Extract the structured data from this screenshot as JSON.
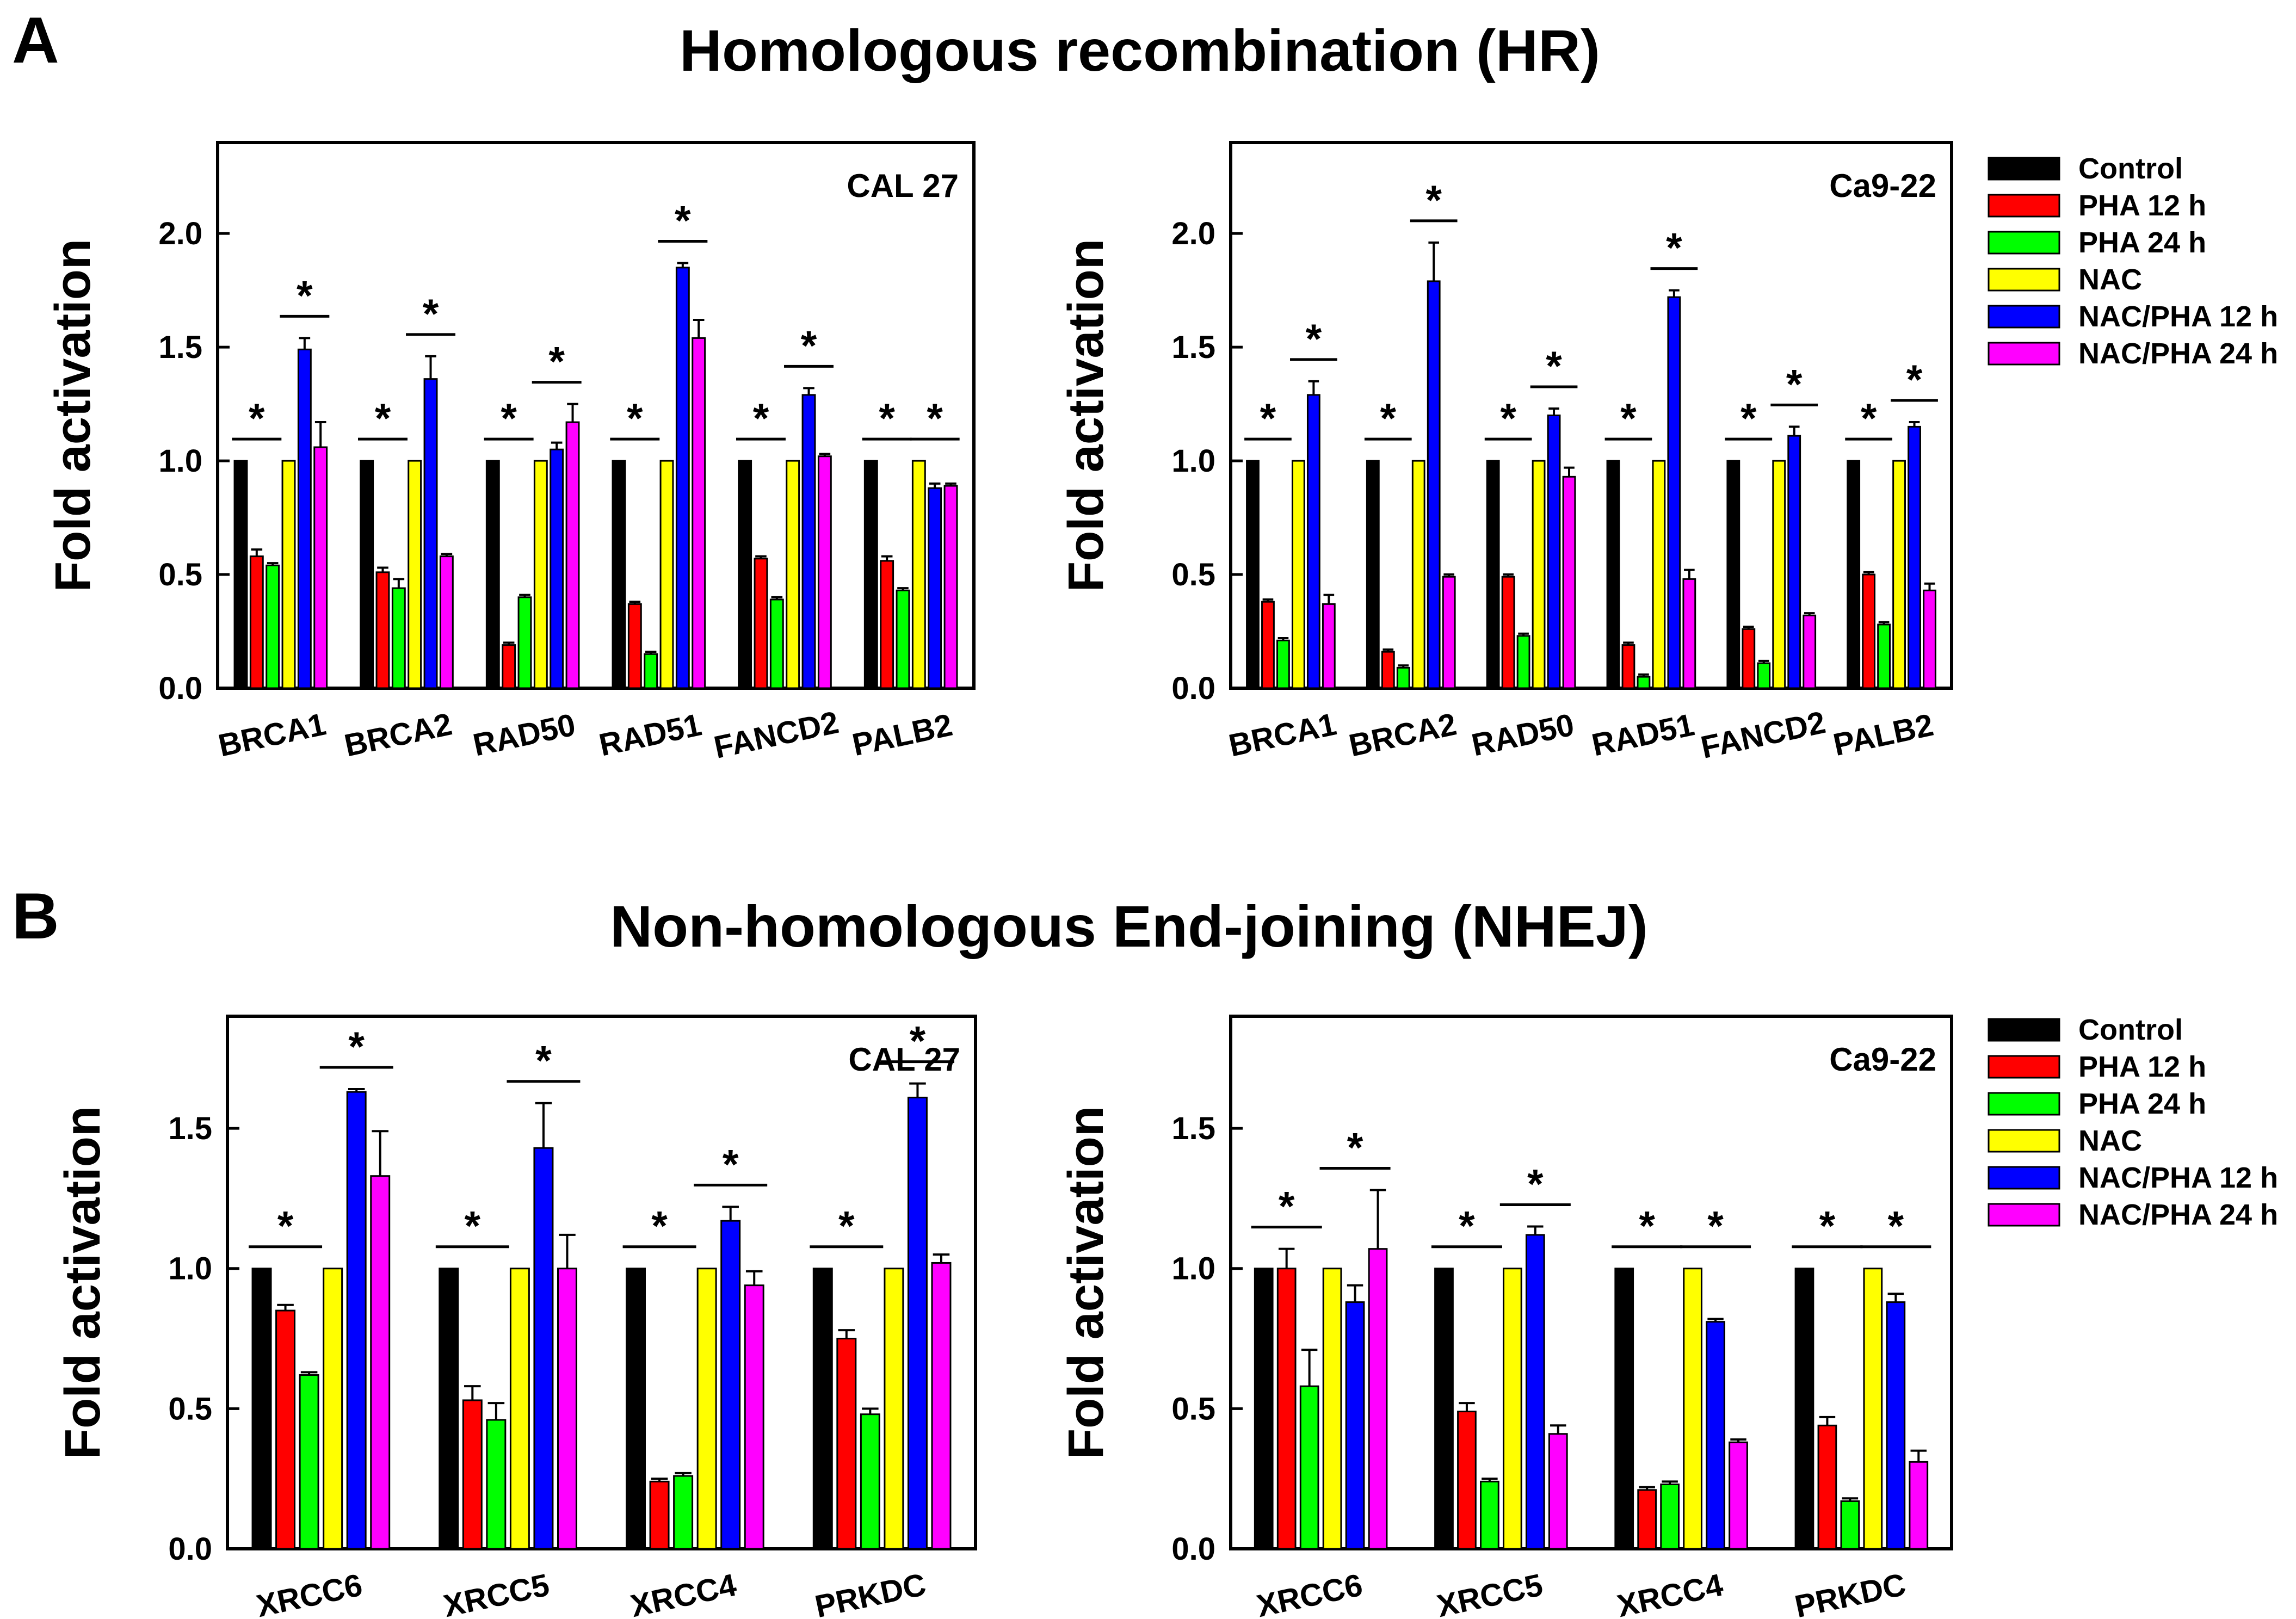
{
  "panels": [
    {
      "letter": "A",
      "title": "Homologous recombination (HR)"
    },
    {
      "letter": "B",
      "title": "Non-homologous End-joining (NHEJ)"
    }
  ],
  "legend": {
    "items": [
      {
        "name": "Control",
        "color": "#000000"
      },
      {
        "name": "PHA 12 h",
        "color": "#ff0000"
      },
      {
        "name": "PHA 24 h",
        "color": "#00ff00"
      },
      {
        "name": "NAC",
        "color": "#ffff00"
      },
      {
        "name": "NAC/PHA 12 h",
        "color": "#0000ff"
      },
      {
        "name": "NAC/PHA 24 h",
        "color": "#ff00ff"
      }
    ]
  },
  "chart_data": [
    {
      "type": "bar",
      "panel": "A",
      "label": "CAL 27",
      "ylabel": "Fold activation",
      "ylim": [
        0,
        2.4
      ],
      "yticks": [
        "0.0",
        "0.5",
        "1.0",
        "1.5",
        "2.0"
      ],
      "categories": [
        "BRCA1",
        "BRCA2",
        "RAD50",
        "RAD51",
        "FANCD2",
        "PALB2"
      ],
      "series": [
        {
          "name": "Control",
          "values": [
            1,
            1,
            1,
            1,
            1,
            1
          ],
          "errors": [
            0,
            0,
            0,
            0,
            0,
            0
          ]
        },
        {
          "name": "PHA 12 h",
          "values": [
            0.58,
            0.51,
            0.19,
            0.37,
            0.57,
            0.56
          ],
          "errors": [
            0.03,
            0.02,
            0.01,
            0.01,
            0.01,
            0.02
          ]
        },
        {
          "name": "PHA 24 h",
          "values": [
            0.54,
            0.44,
            0.4,
            0.15,
            0.39,
            0.43
          ],
          "errors": [
            0.01,
            0.04,
            0.01,
            0.01,
            0.01,
            0.01
          ]
        },
        {
          "name": "NAC",
          "values": [
            1,
            1,
            1,
            1,
            1,
            1
          ],
          "errors": [
            0,
            0,
            0,
            0,
            0,
            0
          ]
        },
        {
          "name": "NAC/PHA 12 h",
          "values": [
            1.49,
            1.36,
            1.05,
            1.85,
            1.29,
            0.88
          ],
          "errors": [
            0.05,
            0.1,
            0.03,
            0.02,
            0.03,
            0.02
          ]
        },
        {
          "name": "NAC/PHA 24 h",
          "values": [
            1.06,
            0.58,
            1.17,
            1.54,
            1.02,
            0.89
          ],
          "errors": [
            0.11,
            0.01,
            0.08,
            0.08,
            0.01,
            0.01
          ]
        }
      ],
      "significance": [
        {
          "category": 0,
          "bars": [
            0,
            2
          ],
          "label": "*"
        },
        {
          "category": 0,
          "bars": [
            3,
            5
          ],
          "label": "*"
        },
        {
          "category": 1,
          "bars": [
            0,
            2
          ],
          "label": "*"
        },
        {
          "category": 1,
          "bars": [
            3,
            5
          ],
          "label": "*"
        },
        {
          "category": 2,
          "bars": [
            0,
            2
          ],
          "label": "*"
        },
        {
          "category": 2,
          "bars": [
            3,
            5
          ],
          "label": "*"
        },
        {
          "category": 3,
          "bars": [
            0,
            2
          ],
          "label": "*"
        },
        {
          "category": 3,
          "bars": [
            3,
            5
          ],
          "label": "*"
        },
        {
          "category": 4,
          "bars": [
            0,
            2
          ],
          "label": "*"
        },
        {
          "category": 4,
          "bars": [
            3,
            5
          ],
          "label": "*"
        },
        {
          "category": 5,
          "bars": [
            0,
            2
          ],
          "label": "*"
        },
        {
          "category": 5,
          "bars": [
            3,
            5
          ],
          "label": "*"
        }
      ]
    },
    {
      "type": "bar",
      "panel": "A",
      "label": "Ca9-22",
      "ylabel": "Fold activation",
      "ylim": [
        0,
        2.4
      ],
      "yticks": [
        "0.0",
        "0.5",
        "1.0",
        "1.5",
        "2.0"
      ],
      "categories": [
        "BRCA1",
        "BRCA2",
        "RAD50",
        "RAD51",
        "FANCD2",
        "PALB2"
      ],
      "series": [
        {
          "name": "Control",
          "values": [
            1,
            1,
            1,
            1,
            1,
            1
          ],
          "errors": [
            0,
            0,
            0,
            0,
            0,
            0
          ]
        },
        {
          "name": "PHA 12 h",
          "values": [
            0.38,
            0.16,
            0.49,
            0.19,
            0.26,
            0.5
          ],
          "errors": [
            0.01,
            0.01,
            0.01,
            0.01,
            0.01,
            0.01
          ]
        },
        {
          "name": "PHA 24 h",
          "values": [
            0.21,
            0.09,
            0.23,
            0.05,
            0.11,
            0.28
          ],
          "errors": [
            0.01,
            0.01,
            0.01,
            0.01,
            0.01,
            0.01
          ]
        },
        {
          "name": "NAC",
          "values": [
            1,
            1,
            1,
            1,
            1,
            1
          ],
          "errors": [
            0,
            0,
            0,
            0,
            0,
            0
          ]
        },
        {
          "name": "NAC/PHA 12 h",
          "values": [
            1.29,
            1.79,
            1.2,
            1.72,
            1.11,
            1.15
          ],
          "errors": [
            0.06,
            0.17,
            0.03,
            0.03,
            0.04,
            0.02
          ]
        },
        {
          "name": "NAC/PHA 24 h",
          "values": [
            0.37,
            0.49,
            0.93,
            0.48,
            0.32,
            0.43
          ],
          "errors": [
            0.04,
            0.01,
            0.04,
            0.04,
            0.01,
            0.03
          ]
        }
      ],
      "significance": [
        {
          "category": 0,
          "bars": [
            0,
            2
          ],
          "label": "*"
        },
        {
          "category": 0,
          "bars": [
            3,
            5
          ],
          "label": "*"
        },
        {
          "category": 1,
          "bars": [
            0,
            2
          ],
          "label": "*"
        },
        {
          "category": 1,
          "bars": [
            3,
            5
          ],
          "label": "*"
        },
        {
          "category": 2,
          "bars": [
            0,
            2
          ],
          "label": "*"
        },
        {
          "category": 2,
          "bars": [
            3,
            5
          ],
          "label": "*"
        },
        {
          "category": 3,
          "bars": [
            0,
            2
          ],
          "label": "*"
        },
        {
          "category": 3,
          "bars": [
            3,
            5
          ],
          "label": "*"
        },
        {
          "category": 4,
          "bars": [
            0,
            2
          ],
          "label": "*"
        },
        {
          "category": 4,
          "bars": [
            3,
            5
          ],
          "label": "*"
        },
        {
          "category": 5,
          "bars": [
            0,
            2
          ],
          "label": "*"
        },
        {
          "category": 5,
          "bars": [
            3,
            5
          ],
          "label": "*"
        }
      ]
    },
    {
      "type": "bar",
      "panel": "B",
      "label": "CAL 27",
      "ylabel": "Fold activation",
      "ylim": [
        0,
        1.9
      ],
      "yticks": [
        "0.0",
        "0.5",
        "1.0",
        "1.5"
      ],
      "categories": [
        "XRCC6",
        "XRCC5",
        "XRCC4",
        "PRKDC"
      ],
      "series": [
        {
          "name": "Control",
          "values": [
            1,
            1,
            1,
            1
          ],
          "errors": [
            0,
            0,
            0,
            0
          ]
        },
        {
          "name": "PHA 12 h",
          "values": [
            0.85,
            0.53,
            0.24,
            0.75
          ],
          "errors": [
            0.02,
            0.05,
            0.01,
            0.03
          ]
        },
        {
          "name": "PHA 24 h",
          "values": [
            0.62,
            0.46,
            0.26,
            0.48
          ],
          "errors": [
            0.01,
            0.06,
            0.01,
            0.02
          ]
        },
        {
          "name": "NAC",
          "values": [
            1,
            1,
            1,
            1
          ],
          "errors": [
            0,
            0,
            0,
            0
          ]
        },
        {
          "name": "NAC/PHA 12 h",
          "values": [
            1.63,
            1.43,
            1.17,
            1.61
          ],
          "errors": [
            0.01,
            0.16,
            0.05,
            0.05
          ]
        },
        {
          "name": "NAC/PHA 24 h",
          "values": [
            1.33,
            1.0,
            0.94,
            1.02
          ],
          "errors": [
            0.16,
            0.12,
            0.05,
            0.03
          ]
        }
      ],
      "significance": [
        {
          "category": 0,
          "bars": [
            0,
            2
          ],
          "label": "*"
        },
        {
          "category": 0,
          "bars": [
            3,
            5
          ],
          "label": "*"
        },
        {
          "category": 1,
          "bars": [
            0,
            2
          ],
          "label": "*"
        },
        {
          "category": 1,
          "bars": [
            3,
            5
          ],
          "label": "*"
        },
        {
          "category": 2,
          "bars": [
            0,
            2
          ],
          "label": "*"
        },
        {
          "category": 2,
          "bars": [
            3,
            5
          ],
          "label": "*"
        },
        {
          "category": 3,
          "bars": [
            0,
            2
          ],
          "label": "*"
        },
        {
          "category": 3,
          "bars": [
            3,
            5
          ],
          "label": "*"
        }
      ]
    },
    {
      "type": "bar",
      "panel": "B",
      "label": "Ca9-22",
      "ylabel": "Fold activation",
      "ylim": [
        0,
        1.9
      ],
      "yticks": [
        "0.0",
        "0.5",
        "1.0",
        "1.5"
      ],
      "categories": [
        "XRCC6",
        "XRCC5",
        "XRCC4",
        "PRKDC"
      ],
      "series": [
        {
          "name": "Control",
          "values": [
            1,
            1,
            1,
            1
          ],
          "errors": [
            0,
            0,
            0,
            0
          ]
        },
        {
          "name": "PHA 12 h",
          "values": [
            1.0,
            0.49,
            0.21,
            0.44
          ],
          "errors": [
            0.07,
            0.03,
            0.01,
            0.03
          ]
        },
        {
          "name": "PHA 24 h",
          "values": [
            0.58,
            0.24,
            0.23,
            0.17
          ],
          "errors": [
            0.13,
            0.01,
            0.01,
            0.01
          ]
        },
        {
          "name": "NAC",
          "values": [
            1,
            1,
            1,
            1
          ],
          "errors": [
            0,
            0,
            0,
            0
          ]
        },
        {
          "name": "NAC/PHA 12 h",
          "values": [
            0.88,
            1.12,
            0.81,
            0.88
          ],
          "errors": [
            0.06,
            0.03,
            0.01,
            0.03
          ]
        },
        {
          "name": "NAC/PHA 24 h",
          "values": [
            1.07,
            0.41,
            0.38,
            0.31
          ],
          "errors": [
            0.21,
            0.03,
            0.01,
            0.04
          ]
        }
      ],
      "significance": [
        {
          "category": 0,
          "bars": [
            0,
            2
          ],
          "label": "*"
        },
        {
          "category": 0,
          "bars": [
            3,
            5
          ],
          "label": "*"
        },
        {
          "category": 1,
          "bars": [
            0,
            2
          ],
          "label": "*"
        },
        {
          "category": 1,
          "bars": [
            3,
            5
          ],
          "label": "*"
        },
        {
          "category": 2,
          "bars": [
            0,
            2
          ],
          "label": "*"
        },
        {
          "category": 2,
          "bars": [
            3,
            5
          ],
          "label": "*"
        },
        {
          "category": 3,
          "bars": [
            0,
            2
          ],
          "label": "*"
        },
        {
          "category": 3,
          "bars": [
            3,
            5
          ],
          "label": "*"
        }
      ]
    }
  ]
}
